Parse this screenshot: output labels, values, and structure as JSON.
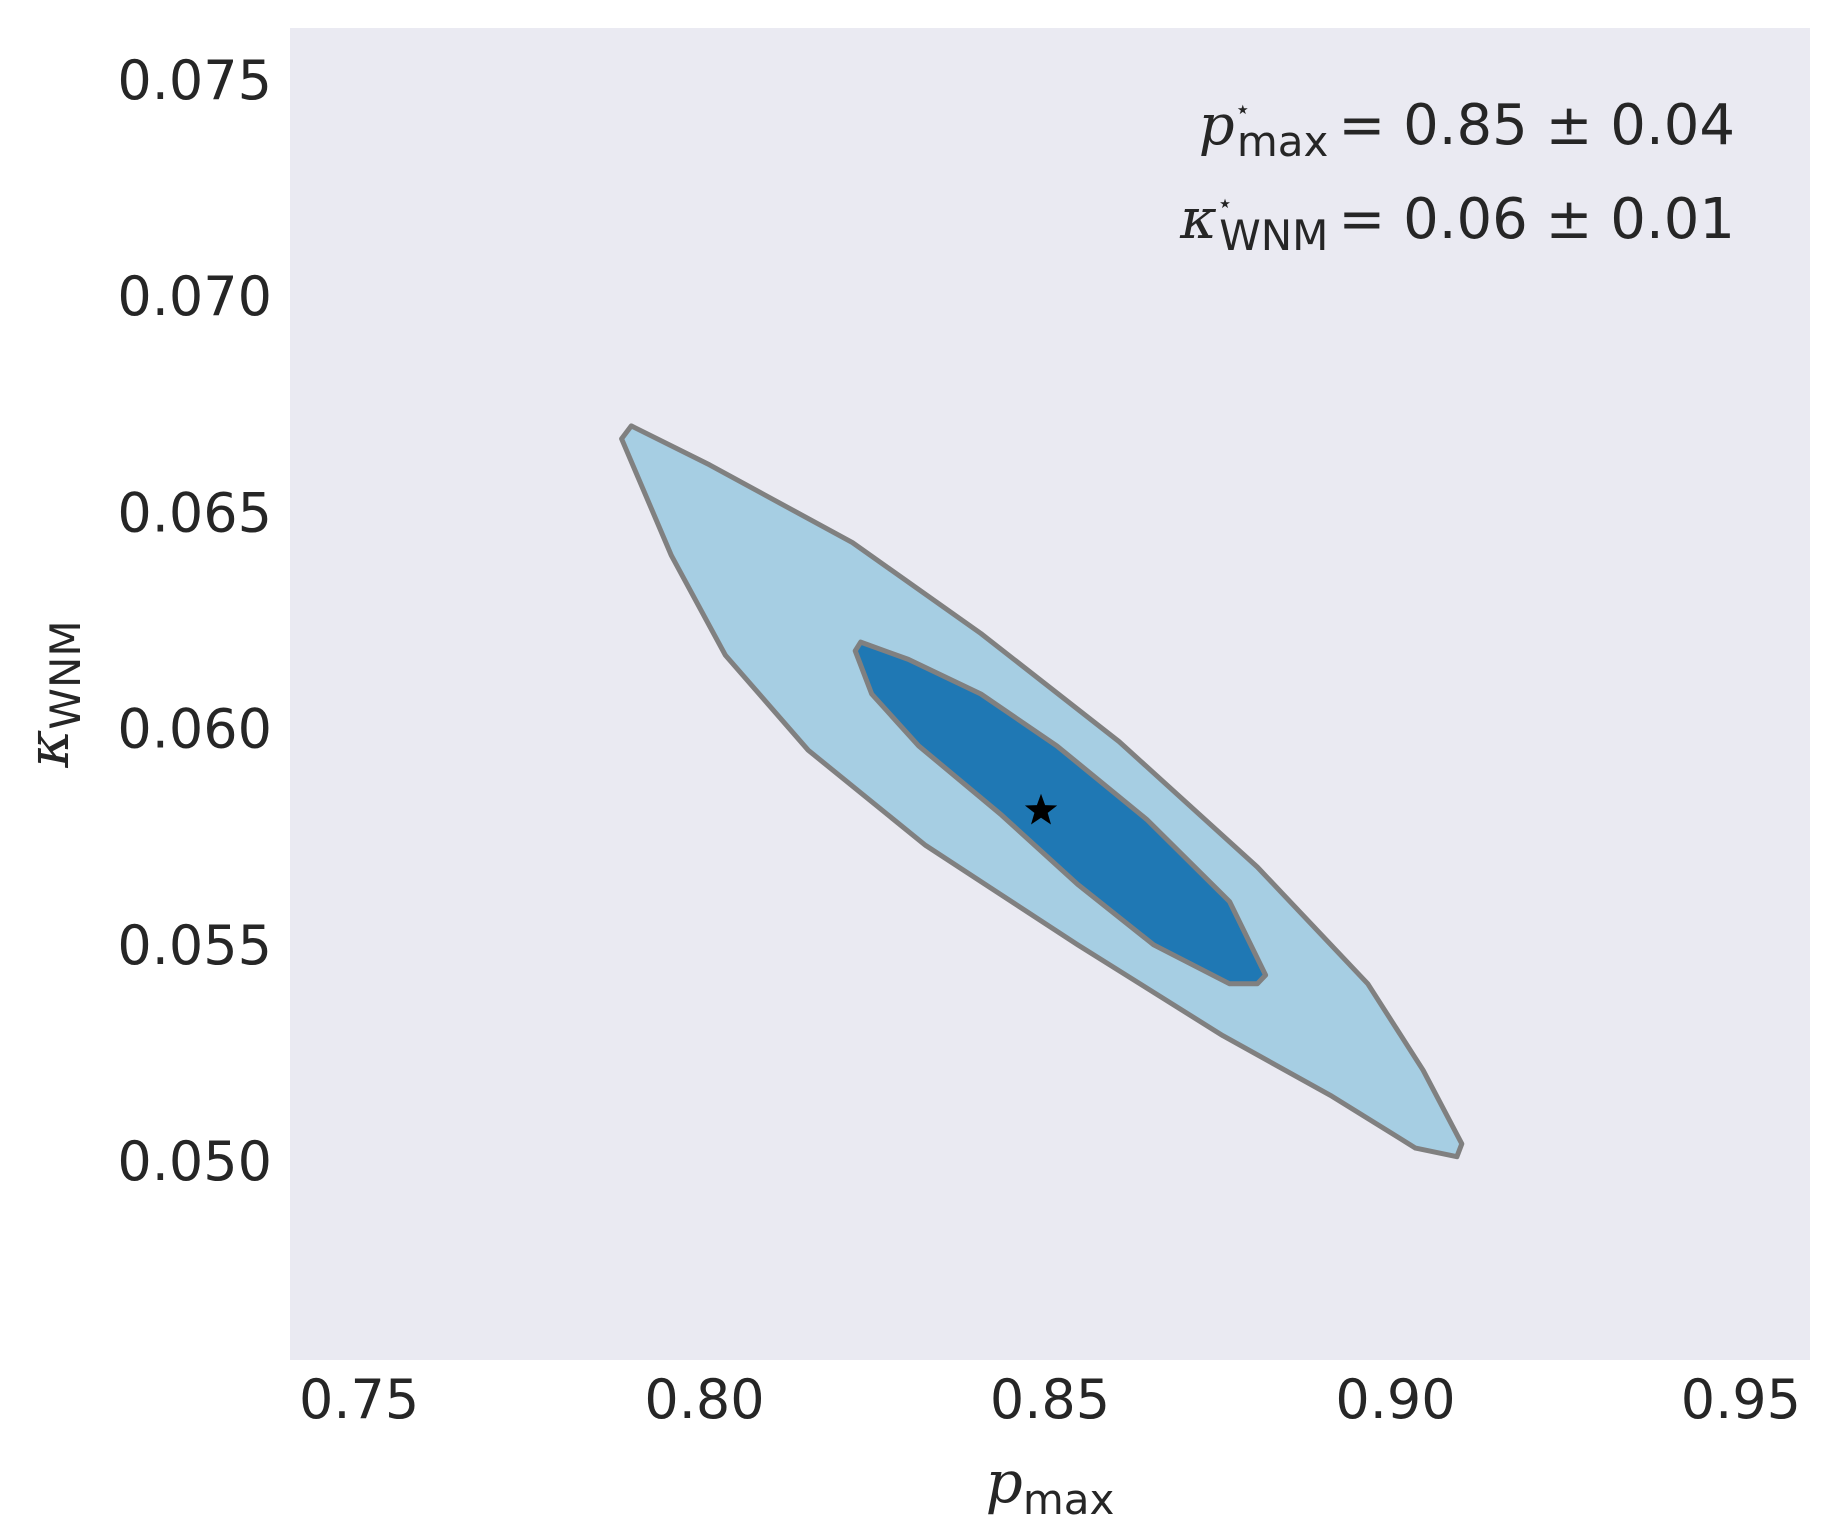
{
  "chart_data": {
    "type": "contour",
    "xlabel": {
      "symbol": "p",
      "subscript": "max"
    },
    "ylabel": {
      "symbol": "κ",
      "subscript": "WNM"
    },
    "xlim": [
      0.74,
      0.96
    ],
    "ylim": [
      0.0454,
      0.0762
    ],
    "x_ticks": [
      0.75,
      0.8,
      0.85,
      0.9,
      0.95
    ],
    "x_tick_labels": [
      "0.75",
      "0.80",
      "0.85",
      "0.90",
      "0.95"
    ],
    "y_ticks": [
      0.05,
      0.055,
      0.06,
      0.065,
      0.07,
      0.075
    ],
    "y_tick_labels": [
      "0.050",
      "0.055",
      "0.060",
      "0.065",
      "0.070",
      "0.075"
    ],
    "grid": false,
    "colors": {
      "plot_background": "#eaeaf2",
      "outer_fill": "#a6cee3",
      "inner_fill": "#1f78b4",
      "contour_line": "#808080",
      "marker": "#000000",
      "text": "#262626"
    },
    "regions": [
      {
        "level": "outer",
        "points": [
          [
            0.7894,
            0.067
          ],
          [
            0.8007,
            0.0661
          ],
          [
            0.8214,
            0.0643
          ],
          [
            0.84,
            0.0622
          ],
          [
            0.86,
            0.0597
          ],
          [
            0.88,
            0.0568
          ],
          [
            0.896,
            0.0541
          ],
          [
            0.904,
            0.0521
          ],
          [
            0.9096,
            0.0504
          ],
          [
            0.9089,
            0.0501
          ],
          [
            0.9029,
            0.0503
          ],
          [
            0.8908,
            0.0515
          ],
          [
            0.875,
            0.0529
          ],
          [
            0.854,
            0.055
          ],
          [
            0.832,
            0.0573
          ],
          [
            0.815,
            0.0595
          ],
          [
            0.803,
            0.0617
          ],
          [
            0.7952,
            0.064
          ],
          [
            0.788,
            0.0667
          ]
        ]
      },
      {
        "level": "inner",
        "points": [
          [
            0.8226,
            0.062
          ],
          [
            0.8295,
            0.0616
          ],
          [
            0.84,
            0.0608
          ],
          [
            0.851,
            0.0596
          ],
          [
            0.864,
            0.0579
          ],
          [
            0.876,
            0.056
          ],
          [
            0.8812,
            0.0543
          ],
          [
            0.88,
            0.0541
          ],
          [
            0.876,
            0.0541
          ],
          [
            0.865,
            0.055
          ],
          [
            0.854,
            0.0564
          ],
          [
            0.843,
            0.058
          ],
          [
            0.831,
            0.0596
          ],
          [
            0.8242,
            0.0608
          ],
          [
            0.8218,
            0.0618
          ]
        ]
      }
    ],
    "best_fit": {
      "x": 0.8487,
      "y": 0.0581,
      "marker": "star"
    },
    "annotations": [
      {
        "symbol": "p",
        "superscript": "⋆",
        "subscript": "max",
        "value": "= 0.85 ± 0.04"
      },
      {
        "symbol": "κ",
        "superscript": "⋆",
        "subscript": "WNM",
        "value": "= 0.06 ± 0.01"
      }
    ]
  }
}
